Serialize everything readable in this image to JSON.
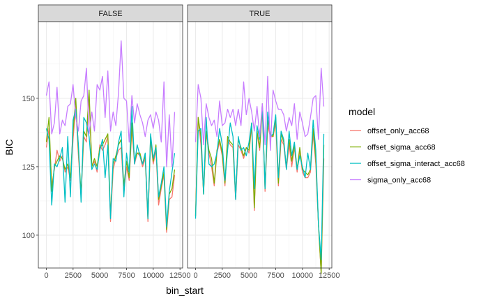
{
  "chart_data": {
    "type": "line",
    "xlabel": "bin_start",
    "ylabel": "BIC",
    "xlim": [
      -750,
      12750
    ],
    "ylim": [
      88,
      178
    ],
    "x_ticks": [
      0,
      2500,
      5000,
      7500,
      10000,
      12500
    ],
    "x_tick_labels": [
      "0",
      "2500",
      "5000",
      "7500",
      "10000",
      "12500"
    ],
    "y_ticks": [
      100,
      125,
      150
    ],
    "y_tick_labels": [
      "100",
      "125",
      "150"
    ],
    "grid": true,
    "legend_title": "model",
    "legend_position": "right",
    "series_names": [
      "offset_only_acc68",
      "offset_sigma_acc68",
      "offset_sigma_interact_acc68",
      "sigma_only_acc68"
    ],
    "series_colors": [
      "#F8766D",
      "#7CAE00",
      "#00BFC4",
      "#C77CFF"
    ],
    "x": [
      0,
      250,
      500,
      750,
      1000,
      1250,
      1500,
      1750,
      2000,
      2250,
      2500,
      2750,
      3000,
      3250,
      3500,
      3750,
      4000,
      4250,
      4500,
      4750,
      5000,
      5250,
      5500,
      5750,
      6000,
      6250,
      6500,
      6750,
      7000,
      7250,
      7500,
      7750,
      8000,
      8250,
      8500,
      8750,
      9000,
      9250,
      9500,
      9750,
      10000,
      10250,
      10500,
      10750,
      11000,
      11250,
      11500,
      11750,
      12000
    ],
    "panels": [
      {
        "label": "FALSE",
        "series": [
          {
            "name": "offset_only_acc68",
            "values": [
              132,
              139,
              118,
              124,
              131,
              127,
              129,
              123,
              125,
              120,
              135,
              147,
              129,
              114,
              136,
              134,
              151,
              125,
              127,
              123,
              133,
              131,
              133,
              136,
              105,
              124,
              128,
              131,
              132,
              116,
              125,
              120,
              139,
              126,
              130,
              129,
              125,
              128,
              105,
              135,
              126,
              131,
              111,
              117,
              122,
              101,
              113,
              114,
              122
            ]
          },
          {
            "name": "offset_sigma_acc68",
            "values": [
              134,
              143,
              116,
              125,
              127,
              129,
              128,
              124,
              126,
              121,
              138,
              150,
              131,
              115,
              138,
              136,
              153,
              125,
              128,
              125,
              132,
              133,
              135,
              137,
              107,
              126,
              129,
              133,
              135,
              118,
              127,
              121,
              141,
              127,
              130,
              130,
              126,
              129,
              106,
              136,
              127,
              133,
              113,
              118,
              123,
              102,
              115,
              117,
              124
            ]
          },
          {
            "name": "offset_sigma_interact_acc68",
            "values": [
              139,
              135,
              111,
              126,
              125,
              128,
              132,
              112,
              136,
              114,
              142,
              146,
              133,
              112,
              143,
              141,
              136,
              124,
              126,
              124,
              131,
              135,
              121,
              133,
              106,
              128,
              127,
              134,
              138,
              114,
              130,
              123,
              147,
              126,
              133,
              129,
              126,
              130,
              106,
              137,
              128,
              132,
              114,
              119,
              125,
              103,
              116,
              123,
              130
            ]
          },
          {
            "name": "sigma_only_acc68",
            "values": [
              151,
              156,
              137,
              141,
              154,
              137,
              142,
              140,
              147,
              148,
              155,
              143,
              138,
              149,
              151,
              161,
              137,
              145,
              138,
              155,
              153,
              158,
              143,
              160,
              138,
              145,
              140,
              152,
              171,
              150,
              149,
              134,
              151,
              141,
              148,
              144,
              141,
              136,
              142,
              144,
              139,
              145,
              142,
              134,
              156,
              125,
              144,
              125,
              145
            ]
          }
        ]
      },
      {
        "label": "TRUE",
        "series": [
          {
            "name": "offset_only_acc68",
            "values": [
              107,
              143,
              133,
              116,
              137,
              130,
              125,
              118,
              130,
              134,
              129,
              118,
              135,
              133,
              132,
              113,
              133,
              131,
              128,
              132,
              130,
              140,
              109,
              137,
              131,
              146,
              116,
              140,
              136,
              136,
              141,
              118,
              135,
              133,
              124,
              133,
              125,
              132,
              123,
              131,
              123,
              121,
              121,
              123,
              137,
              126,
              104,
              86,
              128
            ]
          },
          {
            "name": "offset_sigma_acc68",
            "values": [
              107,
              143,
              136,
              115,
              138,
              131,
              128,
              119,
              131,
              135,
              130,
              119,
              136,
              134,
              133,
              114,
              135,
              132,
              129,
              132,
              131,
              141,
              110,
              138,
              132,
              148,
              117,
              142,
              137,
              136,
              143,
              119,
              137,
              134,
              125,
              135,
              127,
              133,
              124,
              132,
              124,
              123,
              122,
              124,
              139,
              128,
              104,
              86,
              133
            ]
          },
          {
            "name": "offset_sigma_interact_acc68",
            "values": [
              106,
              138,
              139,
              115,
              143,
              126,
              125,
              126,
              130,
              139,
              133,
              120,
              131,
              141,
              136,
              113,
              136,
              131,
              132,
              129,
              134,
              141,
              117,
              140,
              135,
              147,
              117,
              145,
              136,
              137,
              144,
              121,
              138,
              135,
              124,
              138,
              129,
              134,
              124,
              129,
              125,
              121,
              130,
              124,
              142,
              131,
              104,
              91,
              137
            ]
          },
          {
            "name": "sigma_only_acc68",
            "values": [
              134,
              155,
              150,
              133,
              148,
              143,
              140,
              142,
              136,
              149,
              140,
              141,
              146,
              143,
              146,
              140,
              146,
              140,
              156,
              144,
              150,
              145,
              138,
              147,
              136,
              148,
              133,
              158,
              131,
              153,
              149,
              146,
              146,
              144,
              138,
              143,
              140,
              148,
              135,
              145,
              141,
              136,
              137,
              143,
              150,
              151,
              135,
              161,
              147
            ]
          }
        ]
      }
    ]
  }
}
